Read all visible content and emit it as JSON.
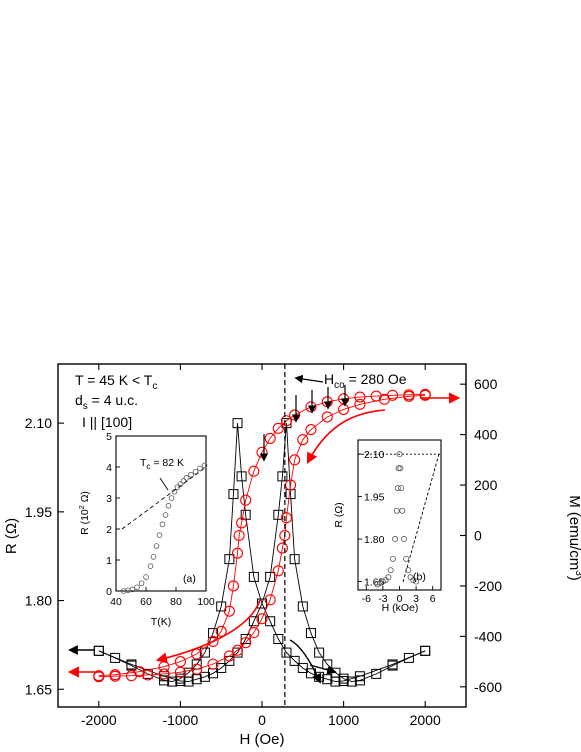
{
  "chart_data": {
    "type": "scatter",
    "main": {
      "xlabel": "H (Oe)",
      "ylabel_left": "R (Ω)",
      "ylabel_right": "M (emu/cm",
      "ylabel_right_sup": "3",
      "ylabel_right_close": ")",
      "xlim": [
        -2500,
        2500
      ],
      "ylim_left": [
        1.62,
        2.2
      ],
      "ylim_right": [
        -680,
        680
      ],
      "x_ticks": [
        "-2000",
        "-1000",
        "0",
        "1000",
        "2000"
      ],
      "y_left_ticks": [
        "1.65",
        "1.80",
        "1.95",
        "2.10"
      ],
      "y_right_ticks": [
        "-600",
        "-400",
        "-200",
        "0",
        "200",
        "400",
        "600"
      ],
      "annotations": {
        "temp": "T = 45 K < T",
        "temp_sub": "c",
        "thick": "d",
        "thick_sub": "s",
        "thick_rest": " = 4 u.c.",
        "current": "I || [100]",
        "hco": "H",
        "hco_sub": "co",
        "hco_rest": " = 280 Oe"
      },
      "hco_value": 280,
      "series": [
        {
          "marker": "open-square",
          "color": "#000000",
          "axis": "left",
          "sweep_down": {
            "x": [
              2000,
              1600,
              1200,
              1000,
              900,
              800,
              700,
              600,
              500,
              400,
              300,
              200,
              100,
              0,
              -100,
              -200,
              -250,
              -300,
              -350,
              -400,
              -500,
              -600,
              -700,
              -800,
              -900,
              -1000,
              -1100,
              -1200,
              -1400,
              -1600,
              -1800,
              -2000
            ],
            "y": [
              1.715,
              1.692,
              1.672,
              1.664,
              1.663,
              1.667,
              1.671,
              1.677,
              1.686,
              1.698,
              1.712,
              1.735,
              1.765,
              1.795,
              1.84,
              1.945,
              2.01,
              2.1,
              1.98,
              1.87,
              1.79,
              1.745,
              1.712,
              1.692,
              1.678,
              1.668,
              1.663,
              1.665,
              1.676,
              1.69,
              1.703,
              1.715
            ]
          },
          "sweep_up": {
            "x": [
              -2000,
              -1600,
              -1200,
              -1000,
              -900,
              -800,
              -700,
              -600,
              -500,
              -400,
              -300,
              -200,
              -100,
              0,
              100,
              200,
              250,
              300,
              350,
              400,
              500,
              600,
              700,
              800,
              900,
              1000,
              1100,
              1200,
              1400,
              1600,
              1800,
              2000
            ],
            "y": [
              1.715,
              1.692,
              1.672,
              1.664,
              1.663,
              1.667,
              1.671,
              1.677,
              1.686,
              1.698,
              1.712,
              1.735,
              1.765,
              1.795,
              1.84,
              1.945,
              2.01,
              2.1,
              1.98,
              1.87,
              1.79,
              1.745,
              1.712,
              1.692,
              1.678,
              1.668,
              1.663,
              1.665,
              1.676,
              1.69,
              1.703,
              1.715
            ]
          }
        },
        {
          "marker": "open-circle",
          "color": "#ff0000",
          "axis": "right",
          "sweep_down": {
            "x": [
              2000,
              1800,
              1600,
              1400,
              1200,
              1000,
              800,
              600,
              400,
              300,
              200,
              100,
              0,
              -100,
              -200,
              -250,
              -280,
              -300,
              -350,
              -400,
              -500,
              -600,
              -800,
              -1000,
              -1200,
              -1500,
              -1800,
              -2000
            ],
            "y": [
              560,
              558,
              556,
              553,
              549,
              542,
              530,
              510,
              478,
              455,
              425,
              385,
              330,
              255,
              140,
              50,
              0,
              -70,
              -200,
              -300,
              -380,
              -420,
              -470,
              -500,
              -520,
              -540,
              -552,
              -556
            ]
          },
          "sweep_up": {
            "x": [
              -2000,
              -1800,
              -1600,
              -1400,
              -1200,
              -1000,
              -800,
              -600,
              -400,
              -300,
              -200,
              -100,
              0,
              100,
              200,
              250,
              280,
              300,
              350,
              400,
              500,
              600,
              800,
              1000,
              1200,
              1500,
              1800,
              2000
            ],
            "y": [
              -560,
              -558,
              -556,
              -553,
              -549,
              -542,
              -530,
              -510,
              -478,
              -455,
              -425,
              -385,
              -330,
              -255,
              -140,
              -50,
              0,
              70,
              200,
              300,
              380,
              420,
              470,
              500,
              520,
              540,
              552,
              556
            ]
          }
        }
      ]
    },
    "inset_a": {
      "panel_label": "(a)",
      "xlabel": "T(K)",
      "ylabel": "R (10",
      "ylabel_sup": "2",
      "ylabel_rest": " Ω)",
      "annotation": "T",
      "annotation_sub": "c",
      "annotation_rest": " = 82 K",
      "tc_value": 82,
      "xlim": [
        40,
        100
      ],
      "ylim": [
        0,
        5
      ],
      "x_ticks": [
        "40",
        "60",
        "80",
        "100"
      ],
      "y_ticks": [
        "0",
        "1",
        "2",
        "3",
        "4",
        "5"
      ],
      "x": [
        45,
        48,
        51,
        54,
        57,
        60,
        63,
        65,
        67,
        69,
        71,
        73,
        75,
        77,
        79,
        81,
        83,
        85,
        87,
        90,
        93,
        96,
        99
      ],
      "y": [
        0.0,
        0.02,
        0.05,
        0.12,
        0.25,
        0.45,
        0.8,
        1.1,
        1.45,
        1.8,
        2.15,
        2.45,
        2.75,
        3.0,
        3.2,
        3.35,
        3.45,
        3.55,
        3.65,
        3.75,
        3.85,
        3.95,
        4.05
      ]
    },
    "inset_b": {
      "panel_label": "(b)",
      "xlabel": "H (kOe)",
      "ylabel": "R (Ω)",
      "xlim": [
        -7.5,
        7.5
      ],
      "ylim": [
        1.62,
        2.15
      ],
      "x_ticks": [
        "-6",
        "-3",
        "0",
        "3",
        "6"
      ],
      "y_ticks": [
        "1.65",
        "1.80",
        "1.95",
        "2.10"
      ],
      "x": [
        -4.0,
        -3.5,
        -3.0,
        -2.5,
        -2.0,
        -1.6,
        -1.2,
        -0.8,
        -0.5,
        -0.3,
        -0.15,
        0.0,
        0.15,
        0.3,
        0.5,
        0.8,
        1.2,
        1.6,
        2.0,
        2.5,
        3.0
      ],
      "y": [
        1.64,
        1.645,
        1.65,
        1.655,
        1.665,
        1.69,
        1.73,
        1.8,
        1.9,
        1.98,
        2.05,
        2.1,
        2.05,
        1.98,
        1.9,
        1.8,
        1.73,
        1.69,
        1.665,
        1.655,
        1.65
      ]
    }
  }
}
